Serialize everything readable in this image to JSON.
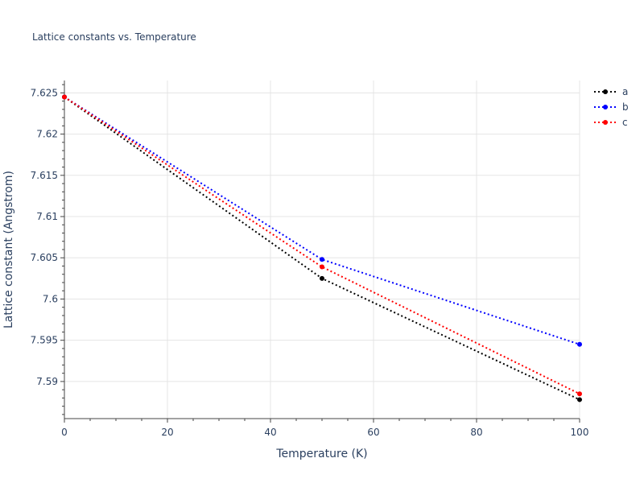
{
  "chart_data": {
    "type": "line",
    "title": "Lattice constants vs. Temperature",
    "xlabel": "Temperature (K)",
    "ylabel": "Lattice constant (Angstrom)",
    "xlim": [
      0,
      100
    ],
    "ylim": [
      7.5855,
      7.6265
    ],
    "x_ticks": [
      0,
      20,
      40,
      60,
      80,
      100
    ],
    "x_tick_labels": [
      "0",
      "20",
      "40",
      "60",
      "80",
      "100"
    ],
    "y_ticks": [
      7.59,
      7.595,
      7.6,
      7.605,
      7.61,
      7.615,
      7.62,
      7.625
    ],
    "y_tick_labels": [
      "7.59",
      "7.595",
      "7.6",
      "7.605",
      "7.61",
      "7.615",
      "7.62",
      "7.625"
    ],
    "grid": true,
    "legend_position": "top-right",
    "x": [
      0,
      50,
      100
    ],
    "series": [
      {
        "name": "a",
        "color": "#000000",
        "values": [
          7.6245,
          7.6025,
          7.5878
        ]
      },
      {
        "name": "b",
        "color": "#0000ff",
        "values": [
          7.6245,
          7.6048,
          7.5945
        ]
      },
      {
        "name": "c",
        "color": "#ff0000",
        "values": [
          7.6245,
          7.6039,
          7.5885
        ]
      }
    ]
  }
}
